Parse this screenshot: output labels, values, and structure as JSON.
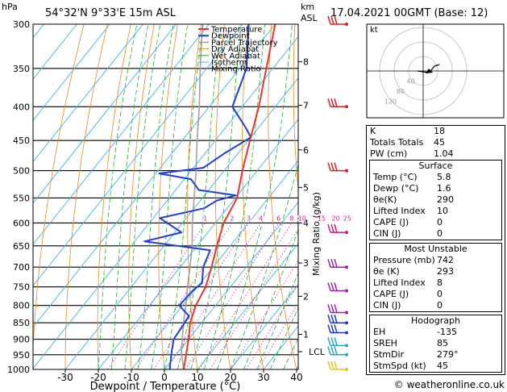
{
  "header": {
    "hpa_label": "hPa",
    "location": "54°32'N  9°33'E  15m  ASL",
    "km_label": "km",
    "asl_label": "ASL",
    "datetime": "17.04.2021  00GMT  (Base: 12)"
  },
  "chart_data": {
    "type": "line",
    "subtype": "skew-T log-P diagram",
    "xlabel": "Dewpoint / Temperature (°C)",
    "ylabel_right": "Mixing Ratio (g/kg)",
    "pressure_levels": [
      300,
      350,
      400,
      450,
      500,
      550,
      600,
      650,
      700,
      750,
      800,
      850,
      900,
      950,
      1000
    ],
    "temperature_ticks": [
      -30,
      -20,
      -10,
      0,
      10,
      20,
      30,
      40
    ],
    "km_ticks": [
      {
        "label": "8",
        "p": 342
      },
      {
        "label": "7",
        "p": 398
      },
      {
        "label": "6",
        "p": 465
      },
      {
        "label": "5",
        "p": 530
      },
      {
        "label": "4",
        "p": 600
      },
      {
        "label": "3",
        "p": 690
      },
      {
        "label": "2",
        "p": 775
      },
      {
        "label": "1",
        "p": 885
      },
      {
        "label": "LCL",
        "p": 940
      }
    ],
    "mixing_ratio_labels": [
      "1",
      "2",
      "3",
      "4",
      "6",
      "8",
      "10",
      "15",
      "20",
      "25"
    ],
    "mixing_ratio_values": [
      1,
      2,
      3,
      4,
      6,
      8,
      10,
      15,
      20,
      25
    ],
    "legend": [
      "Temperature",
      "Dewpoint",
      "Parcel Trajectory",
      "Dry Adiabat",
      "Wet Adiabat",
      "Isotherm",
      "Mixing Ratio"
    ],
    "series": [
      {
        "name": "Temperature",
        "color": "#e8352c",
        "points": [
          [
            1000,
            5.8
          ],
          [
            950,
            3.0
          ],
          [
            900,
            0.0
          ],
          [
            850,
            -3.5
          ],
          [
            800,
            -6.0
          ],
          [
            750,
            -7.5
          ],
          [
            700,
            -10.5
          ],
          [
            650,
            -14.0
          ],
          [
            600,
            -17.5
          ],
          [
            550,
            -19.5
          ],
          [
            500,
            -24.5
          ],
          [
            450,
            -29.5
          ],
          [
            400,
            -35.0
          ],
          [
            350,
            -42.0
          ],
          [
            300,
            -50.0
          ]
        ]
      },
      {
        "name": "Dewpoint",
        "color": "#1f3fd9",
        "points": [
          [
            1000,
            1.6
          ],
          [
            950,
            -1.5
          ],
          [
            900,
            -4.5
          ],
          [
            860,
            -5.0
          ],
          [
            830,
            -5.5
          ],
          [
            800,
            -11.0
          ],
          [
            760,
            -10.5
          ],
          [
            740,
            -9.5
          ],
          [
            700,
            -13.0
          ],
          [
            660,
            -15.0
          ],
          [
            640,
            -37.0
          ],
          [
            620,
            -28.0
          ],
          [
            590,
            -38.0
          ],
          [
            570,
            -27.0
          ],
          [
            555,
            -25.0
          ],
          [
            545,
            -20.5
          ],
          [
            535,
            -33.0
          ],
          [
            515,
            -38.0
          ],
          [
            505,
            -49.0
          ],
          [
            495,
            -37.0
          ],
          [
            470,
            -34.0
          ],
          [
            445,
            -30.0
          ],
          [
            430,
            -34.0
          ],
          [
            400,
            -43.0
          ],
          [
            350,
            -48.0
          ],
          [
            300,
            -58.0
          ]
        ]
      },
      {
        "name": "Parcel Trajectory",
        "color": "#a0a0a0",
        "points": [
          [
            1000,
            5.8
          ],
          [
            940,
            0.8
          ],
          [
            850,
            -5.5
          ],
          [
            800,
            -9.0
          ],
          [
            750,
            -13.0
          ],
          [
            700,
            -17.0
          ],
          [
            650,
            -21.5
          ],
          [
            600,
            -27.0
          ],
          [
            550,
            -32.5
          ],
          [
            500,
            -38.5
          ],
          [
            450,
            -45.5
          ],
          [
            400,
            -53.0
          ],
          [
            350,
            -62.0
          ],
          [
            300,
            -72.0
          ]
        ]
      }
    ],
    "xlim": [
      -40,
      40
    ],
    "ylim": [
      1000,
      300
    ],
    "axis_range_temperature": [
      -35,
      40
    ],
    "grid": true
  },
  "wind_barbs": [
    {
      "p": 300,
      "color": "#d61f2b"
    },
    {
      "p": 400,
      "color": "#d61f2b"
    },
    {
      "p": 500,
      "color": "#d61f2b"
    },
    {
      "p": 620,
      "color": "#d6147a"
    },
    {
      "p": 700,
      "color": "#9c1fb0"
    },
    {
      "p": 760,
      "color": "#9c1fb0"
    },
    {
      "p": 820,
      "color": "#9c1fb0"
    },
    {
      "p": 850,
      "color": "#2036c8"
    },
    {
      "p": 880,
      "color": "#2036c8"
    },
    {
      "p": 920,
      "color": "#1fa6c8"
    },
    {
      "p": 950,
      "color": "#1fa6c8"
    },
    {
      "p": 1000,
      "color": "#e0c81f"
    }
  ],
  "hodograph": {
    "label": "kt",
    "ring_labels": [
      "40",
      "80",
      "120"
    ]
  },
  "indices": [
    {
      "label": "K",
      "value": "18"
    },
    {
      "label": "Totals Totals",
      "value": "45"
    },
    {
      "label": "PW (cm)",
      "value": "1.04"
    }
  ],
  "surface": {
    "title": "Surface",
    "rows": [
      {
        "label": "Temp (°C)",
        "value": "5.8"
      },
      {
        "label": "Dewp (°C)",
        "value": "1.6"
      },
      {
        "label": "θe(K)",
        "value": "290"
      },
      {
        "label": "Lifted Index",
        "value": "10"
      },
      {
        "label": "CAPE (J)",
        "value": "0"
      },
      {
        "label": "CIN (J)",
        "value": "0"
      }
    ]
  },
  "most_unstable": {
    "title": "Most Unstable",
    "rows": [
      {
        "label": "Pressure (mb)",
        "value": "742"
      },
      {
        "label": "θe (K)",
        "value": "293"
      },
      {
        "label": "Lifted Index",
        "value": "8"
      },
      {
        "label": "CAPE (J)",
        "value": "0"
      },
      {
        "label": "CIN (J)",
        "value": "0"
      }
    ]
  },
  "hodograph_table": {
    "title": "Hodograph",
    "rows": [
      {
        "label": "EH",
        "value": "-135"
      },
      {
        "label": "SREH",
        "value": "85"
      },
      {
        "label": "StmDir",
        "value": "279°"
      },
      {
        "label": "StmSpd (kt)",
        "value": "45"
      }
    ]
  },
  "footer": {
    "copyright": "© weatheronline.co.uk"
  }
}
